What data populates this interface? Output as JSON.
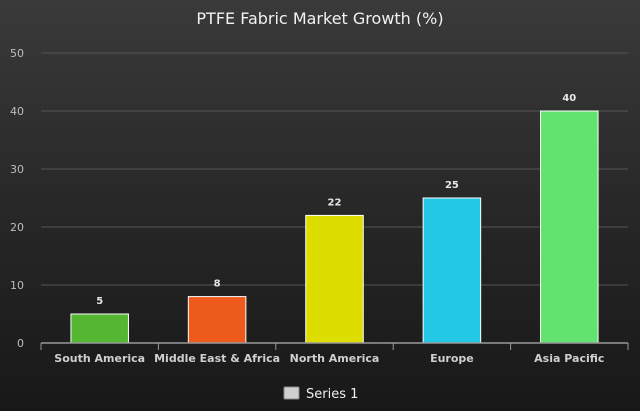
{
  "chart_data": {
    "type": "bar",
    "title": "PTFE Fabric Market Growth (%)",
    "categories": [
      "South America",
      "Middle East & Africa",
      "North America",
      "Europe",
      "Asia Pacific"
    ],
    "series": [
      {
        "name": "Series 1",
        "values": [
          5,
          8,
          22,
          25,
          40
        ]
      }
    ],
    "bar_colors": [
      "#55b731",
      "#ee5a1c",
      "#dedd00",
      "#22c8e5",
      "#62e36f"
    ],
    "ylim": [
      0,
      50
    ],
    "yticks": [
      0,
      10,
      20,
      30,
      40,
      50
    ],
    "grid": true,
    "legend": "bottom-center",
    "legend_swatch_color": "#cfcfcf"
  }
}
